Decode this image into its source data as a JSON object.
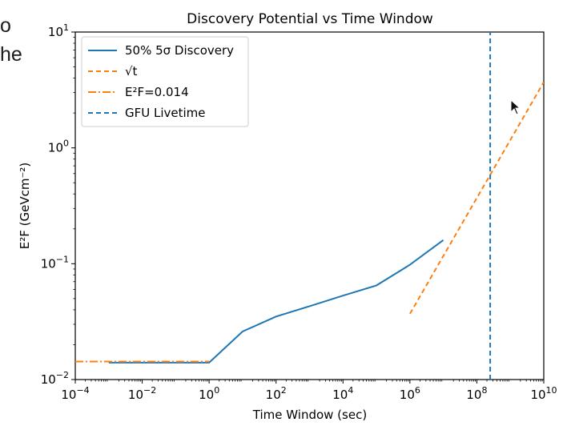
{
  "side_text": [
    "o",
    "he"
  ],
  "chart_data": {
    "type": "line",
    "title": "Discovery Potential vs Time Window",
    "xlabel": "Time Window (sec)",
    "ylabel": "E²F (GeVcm⁻²)",
    "xscale": "log",
    "yscale": "log",
    "xlim": [
      0.0001,
      10000000000
    ],
    "ylim": [
      0.01,
      10
    ],
    "grid": false,
    "legend_position": "upper-left",
    "x_ticks": [
      {
        "value": 0.0001,
        "base": "10",
        "exp": "−4"
      },
      {
        "value": 0.01,
        "base": "10",
        "exp": "−2"
      },
      {
        "value": 1,
        "base": "10",
        "exp": "0"
      },
      {
        "value": 100,
        "base": "10",
        "exp": "2"
      },
      {
        "value": 10000,
        "base": "10",
        "exp": "4"
      },
      {
        "value": 1000000,
        "base": "10",
        "exp": "6"
      },
      {
        "value": 100000000,
        "base": "10",
        "exp": "8"
      },
      {
        "value": 10000000000,
        "base": "10",
        "exp": "10"
      }
    ],
    "y_ticks": [
      {
        "value": 0.01,
        "base": "10",
        "exp": "−2"
      },
      {
        "value": 0.1,
        "base": "10",
        "exp": "−1"
      },
      {
        "value": 1,
        "base": "10",
        "exp": "0"
      },
      {
        "value": 10,
        "base": "10",
        "exp": "1"
      }
    ],
    "series": [
      {
        "name": "50% 5σ Discovery",
        "style": "solid",
        "color": "#1f77b4",
        "x": [
          0.001,
          0.01,
          0.1,
          1,
          10,
          100,
          1000,
          10000,
          100000,
          1000000,
          10000000
        ],
        "y": [
          0.014,
          0.014,
          0.014,
          0.014,
          0.026,
          0.035,
          0.043,
          0.053,
          0.065,
          0.098,
          0.16
        ]
      },
      {
        "name": "√t",
        "style": "dashed",
        "color": "#ff7f0e",
        "x": [
          1000000,
          10000000000
        ],
        "y": [
          0.037,
          3.7
        ]
      },
      {
        "name": "E²F=0.014",
        "style": "dashdot",
        "color": "#ff7f0e",
        "x": [
          0.0001,
          1
        ],
        "y": [
          0.0143,
          0.0143
        ]
      },
      {
        "name": "GFU Livetime",
        "style": "dashed",
        "color": "#1f77b4",
        "orientation": "vertical",
        "x": [
          250000000,
          250000000
        ],
        "y": [
          0.01,
          10
        ]
      }
    ],
    "legend": [
      {
        "label": "50% 5σ Discovery",
        "style": "solid",
        "color": "#1f77b4"
      },
      {
        "label": "√t",
        "style": "dashed",
        "color": "#ff7f0e"
      },
      {
        "label": "E²F=0.014",
        "style": "dashdot",
        "color": "#ff7f0e"
      },
      {
        "label": "GFU Livetime",
        "style": "dashed",
        "color": "#1f77b4"
      }
    ]
  }
}
